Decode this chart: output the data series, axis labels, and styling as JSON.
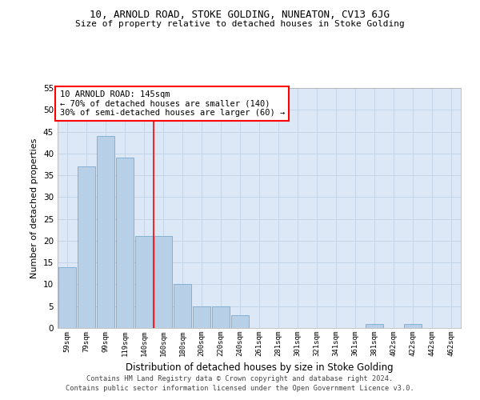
{
  "title": "10, ARNOLD ROAD, STOKE GOLDING, NUNEATON, CV13 6JG",
  "subtitle": "Size of property relative to detached houses in Stoke Golding",
  "xlabel": "Distribution of detached houses by size in Stoke Golding",
  "ylabel": "Number of detached properties",
  "categories": [
    "59sqm",
    "79sqm",
    "99sqm",
    "119sqm",
    "140sqm",
    "160sqm",
    "180sqm",
    "200sqm",
    "220sqm",
    "240sqm",
    "261sqm",
    "281sqm",
    "301sqm",
    "321sqm",
    "341sqm",
    "361sqm",
    "381sqm",
    "402sqm",
    "422sqm",
    "442sqm",
    "462sqm"
  ],
  "values": [
    14,
    37,
    44,
    39,
    21,
    21,
    10,
    5,
    5,
    3,
    0,
    0,
    0,
    0,
    0,
    0,
    1,
    0,
    1,
    0,
    0
  ],
  "bar_color": "#b8cfe8",
  "bar_edge_color": "#7aaad0",
  "grid_color": "#c5d5e8",
  "background_color": "#dce8f5",
  "red_line_x": 4.5,
  "annotation_title": "10 ARNOLD ROAD: 145sqm",
  "annotation_line1": "← 70% of detached houses are smaller (140)",
  "annotation_line2": "30% of semi-detached houses are larger (60) →",
  "footer_line1": "Contains HM Land Registry data © Crown copyright and database right 2024.",
  "footer_line2": "Contains public sector information licensed under the Open Government Licence v3.0.",
  "ylim": [
    0,
    55
  ],
  "yticks": [
    0,
    5,
    10,
    15,
    20,
    25,
    30,
    35,
    40,
    45,
    50,
    55
  ]
}
